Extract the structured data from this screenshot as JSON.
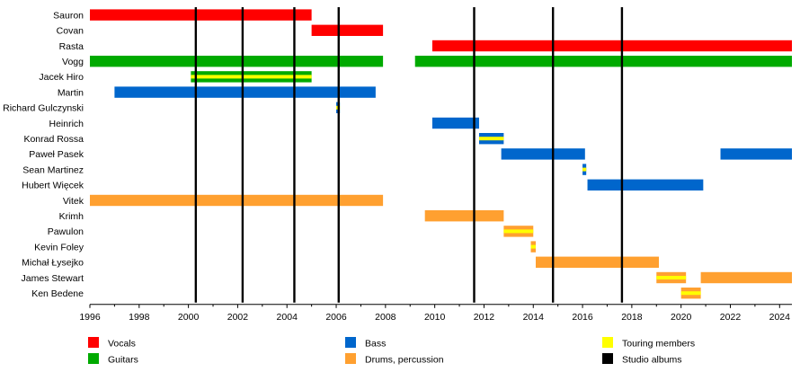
{
  "chart_data": {
    "type": "timeline",
    "title": "",
    "xlabel": "",
    "ylabel": "",
    "xlim": [
      1996,
      2024.5
    ],
    "x_ticks": [
      1996,
      1998,
      2000,
      2002,
      2004,
      2006,
      2008,
      2010,
      2012,
      2014,
      2016,
      2018,
      2020,
      2022,
      2024
    ],
    "grid": false,
    "legend_position": "bottom",
    "colors": {
      "vocals": "#ff0000",
      "guitars": "#00aa00",
      "bass": "#0066cc",
      "drums": "#ffa030",
      "touring": "#ffff00",
      "albums": "#000000"
    },
    "members": [
      {
        "name": "Sauron",
        "spans": [
          {
            "start": 1996.0,
            "end": 2005.0,
            "role": "vocals"
          }
        ]
      },
      {
        "name": "Covan",
        "spans": [
          {
            "start": 2005.0,
            "end": 2007.9,
            "role": "vocals"
          }
        ]
      },
      {
        "name": "Rasta",
        "spans": [
          {
            "start": 2009.9,
            "end": 2024.5,
            "role": "vocals"
          }
        ]
      },
      {
        "name": "Vogg",
        "spans": [
          {
            "start": 1996.0,
            "end": 2007.9,
            "role": "guitars"
          },
          {
            "start": 2009.2,
            "end": 2024.5,
            "role": "guitars"
          }
        ]
      },
      {
        "name": "Jacek Hiro",
        "spans": [
          {
            "start": 2000.1,
            "end": 2005.0,
            "role": "guitars",
            "touring": true
          }
        ]
      },
      {
        "name": "Martin",
        "spans": [
          {
            "start": 1997.0,
            "end": 2007.6,
            "role": "bass"
          }
        ]
      },
      {
        "name": "Richard Gulczynski",
        "spans": [
          {
            "start": 2006.0,
            "end": 2006.15,
            "role": "bass",
            "touring": true
          }
        ]
      },
      {
        "name": "Heinrich",
        "spans": [
          {
            "start": 2009.9,
            "end": 2011.8,
            "role": "bass"
          }
        ]
      },
      {
        "name": "Konrad Rossa",
        "spans": [
          {
            "start": 2011.8,
            "end": 2012.8,
            "role": "bass",
            "touring": true
          }
        ]
      },
      {
        "name": "Paweł Pasek",
        "spans": [
          {
            "start": 2012.7,
            "end": 2016.1,
            "role": "bass"
          },
          {
            "start": 2021.6,
            "end": 2024.5,
            "role": "bass"
          }
        ]
      },
      {
        "name": "Sean Martinez",
        "spans": [
          {
            "start": 2016.0,
            "end": 2016.15,
            "role": "bass",
            "touring": true
          }
        ]
      },
      {
        "name": "Hubert Więcek",
        "spans": [
          {
            "start": 2016.2,
            "end": 2020.9,
            "role": "bass"
          }
        ]
      },
      {
        "name": "Vitek",
        "spans": [
          {
            "start": 1996.0,
            "end": 2007.9,
            "role": "drums"
          }
        ]
      },
      {
        "name": "Krimh",
        "spans": [
          {
            "start": 2009.6,
            "end": 2012.8,
            "role": "drums"
          }
        ]
      },
      {
        "name": "Pawulon",
        "spans": [
          {
            "start": 2012.8,
            "end": 2014.0,
            "role": "drums",
            "touring": true
          }
        ]
      },
      {
        "name": "Kevin Foley",
        "spans": [
          {
            "start": 2013.9,
            "end": 2014.1,
            "role": "drums",
            "touring": true
          }
        ]
      },
      {
        "name": "Michał Łysejko",
        "spans": [
          {
            "start": 2014.1,
            "end": 2019.1,
            "role": "drums"
          }
        ]
      },
      {
        "name": "James Stewart",
        "spans": [
          {
            "start": 2019.0,
            "end": 2020.2,
            "role": "drums",
            "touring": true
          },
          {
            "start": 2020.8,
            "end": 2024.5,
            "role": "drums"
          }
        ]
      },
      {
        "name": "Ken Bedene",
        "spans": [
          {
            "start": 2020.0,
            "end": 2020.8,
            "role": "drums",
            "touring": true
          }
        ]
      }
    ],
    "studio_albums": [
      2000.3,
      2002.2,
      2004.3,
      2006.1,
      2011.6,
      2014.8,
      2017.6
    ],
    "legend": [
      {
        "key": "vocals",
        "label": "Vocals"
      },
      {
        "key": "guitars",
        "label": "Guitars"
      },
      {
        "key": "bass",
        "label": "Bass"
      },
      {
        "key": "drums",
        "label": "Drums, percussion"
      },
      {
        "key": "touring",
        "label": "Touring members"
      },
      {
        "key": "albums",
        "label": "Studio albums"
      }
    ]
  }
}
